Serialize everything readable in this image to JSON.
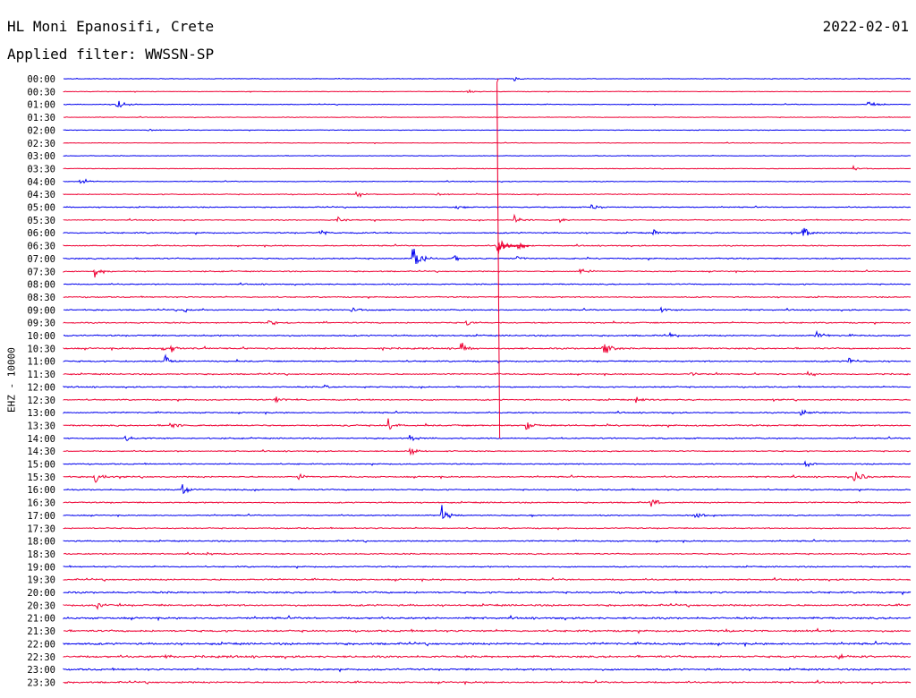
{
  "header": {
    "station": "HL Moni Epanosifi, Crete",
    "date": "2022-02-01",
    "filter": "Applied filter: WWSSN-SP"
  },
  "chart_data": {
    "type": "line",
    "title": "HL Moni Epanosifi, Crete",
    "ylabel": "EHZ - 10000",
    "line_colors": [
      "#0000ee",
      "#ee0033"
    ],
    "row_labels": [
      "00:00",
      "00:30",
      "01:00",
      "01:30",
      "02:00",
      "02:30",
      "03:00",
      "03:30",
      "04:00",
      "04:30",
      "05:00",
      "05:30",
      "06:00",
      "06:30",
      "07:00",
      "07:30",
      "08:00",
      "08:30",
      "09:00",
      "09:30",
      "10:00",
      "10:30",
      "11:00",
      "11:30",
      "12:00",
      "12:30",
      "13:00",
      "13:30",
      "14:00",
      "14:30",
      "15:00",
      "15:30",
      "16:00",
      "16:30",
      "17:00",
      "17:30",
      "18:00",
      "18:30",
      "19:00",
      "19:30",
      "20:00",
      "20:30",
      "21:00",
      "21:30",
      "22:00",
      "22:30",
      "23:00",
      "23:30"
    ],
    "noise_levels": [
      0.5,
      0.5,
      0.6,
      0.5,
      0.5,
      0.5,
      0.5,
      0.5,
      0.6,
      0.7,
      0.8,
      0.8,
      1.0,
      0.9,
      1.0,
      0.9,
      0.9,
      0.9,
      1.0,
      1.0,
      1.1,
      1.2,
      1.1,
      1.0,
      1.0,
      1.0,
      1.0,
      1.2,
      1.0,
      0.9,
      0.9,
      1.1,
      1.0,
      1.0,
      0.9,
      0.9,
      1.0,
      1.0,
      1.0,
      1.2,
      1.4,
      1.4,
      1.5,
      1.5,
      1.6,
      1.6,
      1.4,
      1.3
    ],
    "events": [
      {
        "row": 0,
        "minute": 16,
        "amp": 3
      },
      {
        "row": 1,
        "minute": 14.3,
        "amp": 4
      },
      {
        "row": 2,
        "minute": 1.9,
        "amp": 10
      },
      {
        "row": 2,
        "minute": 28.5,
        "amp": 9
      },
      {
        "row": 4,
        "minute": 3,
        "amp": 3
      },
      {
        "row": 7,
        "minute": 28,
        "amp": 4
      },
      {
        "row": 8,
        "minute": 0.6,
        "amp": 6
      },
      {
        "row": 9,
        "minute": 10.4,
        "amp": 6
      },
      {
        "row": 9,
        "minute": 13.2,
        "amp": 4
      },
      {
        "row": 10,
        "minute": 13.9,
        "amp": 6
      },
      {
        "row": 10,
        "minute": 18.7,
        "amp": 8
      },
      {
        "row": 11,
        "minute": 9.7,
        "amp": 4
      },
      {
        "row": 11,
        "minute": 16,
        "amp": 6
      },
      {
        "row": 11,
        "minute": 17.6,
        "amp": 5
      },
      {
        "row": 12,
        "minute": 9.1,
        "amp": 6
      },
      {
        "row": 12,
        "minute": 20.9,
        "amp": 5
      },
      {
        "row": 12,
        "minute": 26.2,
        "amp": 12
      },
      {
        "row": 13,
        "minute": 15.3,
        "amp": 14
      },
      {
        "row": 13,
        "minute": 16.1,
        "amp": 10
      },
      {
        "row": 14,
        "minute": 12.4,
        "amp": 22
      },
      {
        "row": 14,
        "minute": 13.8,
        "amp": 6
      },
      {
        "row": 14,
        "minute": 16.1,
        "amp": 6
      },
      {
        "row": 15,
        "minute": 1.1,
        "amp": 8
      },
      {
        "row": 15,
        "minute": 18.3,
        "amp": 7
      },
      {
        "row": 18,
        "minute": 4.3,
        "amp": 4
      },
      {
        "row": 18,
        "minute": 10.2,
        "amp": 4
      },
      {
        "row": 18,
        "minute": 21.2,
        "amp": 6
      },
      {
        "row": 19,
        "minute": 7.3,
        "amp": 5
      },
      {
        "row": 19,
        "minute": 14.3,
        "amp": 5
      },
      {
        "row": 20,
        "minute": 26.6,
        "amp": 10
      },
      {
        "row": 20,
        "minute": 21.5,
        "amp": 4
      },
      {
        "row": 21,
        "minute": 3.8,
        "amp": 8
      },
      {
        "row": 21,
        "minute": 3.5,
        "amp": 6
      },
      {
        "row": 21,
        "minute": 14.1,
        "amp": 12
      },
      {
        "row": 21,
        "minute": 19.1,
        "amp": 14
      },
      {
        "row": 22,
        "minute": 3.6,
        "amp": 12
      },
      {
        "row": 22,
        "minute": 27.8,
        "amp": 8
      },
      {
        "row": 23,
        "minute": 22.2,
        "amp": 5
      },
      {
        "row": 23,
        "minute": 26.4,
        "amp": 5
      },
      {
        "row": 24,
        "minute": 9.3,
        "amp": 4
      },
      {
        "row": 25,
        "minute": 7.5,
        "amp": 6
      },
      {
        "row": 25,
        "minute": 20.3,
        "amp": 6
      },
      {
        "row": 26,
        "minute": 26.1,
        "amp": 6
      },
      {
        "row": 27,
        "minute": 3.8,
        "amp": 6
      },
      {
        "row": 27,
        "minute": 11.5,
        "amp": 10
      },
      {
        "row": 27,
        "minute": 16.4,
        "amp": 10
      },
      {
        "row": 28,
        "minute": 2.2,
        "amp": 6
      },
      {
        "row": 28,
        "minute": 12.3,
        "amp": 7
      },
      {
        "row": 29,
        "minute": 12.3,
        "amp": 6
      },
      {
        "row": 30,
        "minute": 26.3,
        "amp": 5
      },
      {
        "row": 31,
        "minute": 1.1,
        "amp": 14
      },
      {
        "row": 31,
        "minute": 8.3,
        "amp": 6
      },
      {
        "row": 31,
        "minute": 28,
        "amp": 18
      },
      {
        "row": 32,
        "minute": 4.4,
        "amp": 6
      },
      {
        "row": 32,
        "minute": 4.2,
        "amp": 8
      },
      {
        "row": 33,
        "minute": 20.8,
        "amp": 8
      },
      {
        "row": 34,
        "minute": 13.4,
        "amp": 14
      },
      {
        "row": 34,
        "minute": 22.4,
        "amp": 6
      },
      {
        "row": 37,
        "minute": 5.1,
        "amp": 4
      },
      {
        "row": 41,
        "minute": 1.2,
        "amp": 5
      },
      {
        "row": 43,
        "minute": 23.5,
        "amp": 4
      },
      {
        "row": 45,
        "minute": 3.6,
        "amp": 5
      },
      {
        "row": 45,
        "minute": 27.4,
        "amp": 5
      }
    ],
    "main_event": {
      "start_row": 0,
      "end_row": 28,
      "minute": 15.4,
      "peak_row": 13
    }
  }
}
